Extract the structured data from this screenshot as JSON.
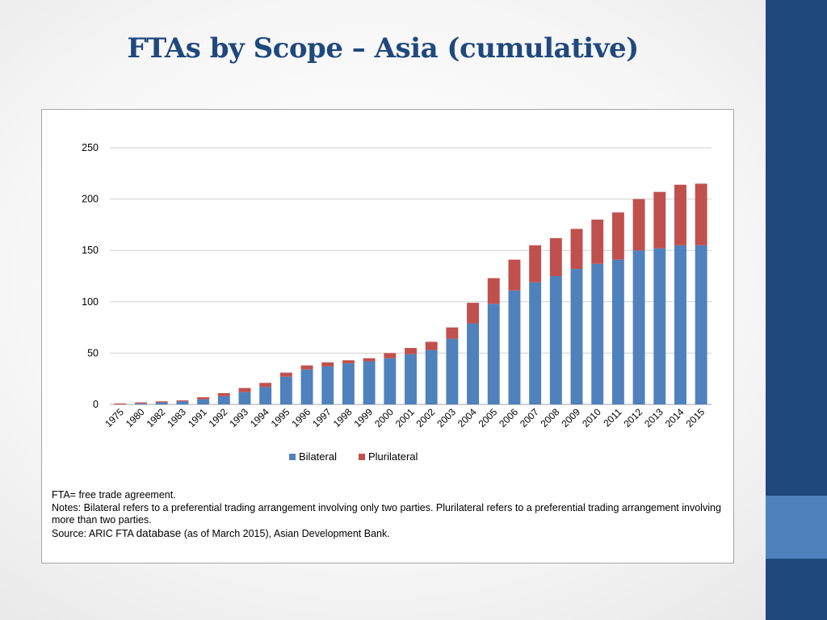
{
  "slide": {
    "title": "FTAs by Scope – Asia (cumulative)"
  },
  "colors": {
    "bilateral": "#4f81bd",
    "plurilateral": "#c0504d",
    "title": "#1f497d",
    "sidebar": "#1f497d",
    "sidebar_accent": "#4f81bd"
  },
  "chart_data": {
    "type": "bar",
    "stacked": true,
    "title": "",
    "xlabel": "",
    "ylabel": "",
    "ylim": [
      0,
      250
    ],
    "yticks": [
      0,
      50,
      100,
      150,
      200,
      250
    ],
    "grid": true,
    "legend_position": "bottom",
    "categories": [
      "1975",
      "1980",
      "1982",
      "1983",
      "1991",
      "1992",
      "1993",
      "1994",
      "1995",
      "1996",
      "1997",
      "1998",
      "1999",
      "2000",
      "2001",
      "2002",
      "2003",
      "2004",
      "2005",
      "2006",
      "2007",
      "2008",
      "2009",
      "2010",
      "2011",
      "2012",
      "2013",
      "2014",
      "2015"
    ],
    "series": [
      {
        "name": "Bilateral",
        "values": [
          0,
          1,
          2,
          3,
          5,
          8,
          12,
          17,
          27,
          34,
          37,
          40,
          42,
          45,
          49,
          53,
          64,
          79,
          98,
          111,
          119,
          125,
          132,
          137,
          141,
          150,
          152,
          155,
          155
        ]
      },
      {
        "name": "Plurilateral",
        "values": [
          1,
          1,
          1,
          1,
          2,
          3,
          4,
          4,
          4,
          4,
          4,
          3,
          3,
          5,
          6,
          8,
          11,
          20,
          25,
          30,
          36,
          37,
          39,
          43,
          46,
          50,
          55,
          59,
          60
        ]
      }
    ]
  },
  "notes": {
    "line1": "FTA= free trade agreement.",
    "line2": "Notes: Bilateral refers to a preferential trading arrangement involving only two parties. Plurilateral refers to a preferential trading arrangement involving more than two parties.",
    "source_prefix": "Source: ARIC FTA ",
    "source_db": "database",
    "source_suffix": " (as of March 2015), Asian Development Bank."
  }
}
